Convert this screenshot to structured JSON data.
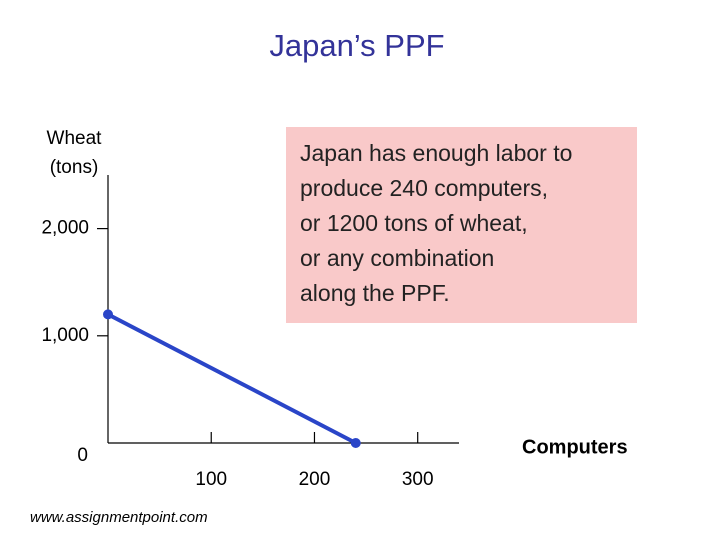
{
  "chart_data": {
    "type": "line",
    "title": "Japan’s PPF",
    "ylabel": [
      "Wheat",
      "(tons)"
    ],
    "xlabel": "Computers",
    "series": [
      {
        "x": [
          0,
          240
        ],
        "values": [
          1200,
          0
        ],
        "color": "#2a45c8"
      }
    ],
    "xlim": [
      0,
      340
    ],
    "xticks": [
      100,
      200,
      300
    ],
    "ylim": [
      0,
      2500
    ],
    "yticks": [
      0,
      {
        "value": 1000,
        "label": "1,000"
      },
      {
        "value": 2000,
        "label": "2,000"
      }
    ],
    "annotation": [
      "Japan has enough labor to",
      "produce 240 computers,",
      "or 1200 tons of wheat,",
      "or any combination",
      "along the PPF."
    ],
    "footer": "www.assignmentpoint.com"
  }
}
